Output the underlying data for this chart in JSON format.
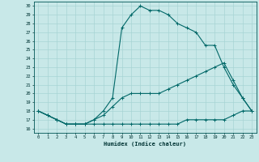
{
  "xlabel": "Humidex (Indice chaleur)",
  "bg_color": "#c8e8e8",
  "line_color": "#006868",
  "grid_color": "#a8d4d4",
  "xlim": [
    -0.5,
    23.5
  ],
  "ylim": [
    15.5,
    30.5
  ],
  "xticks": [
    0,
    1,
    2,
    3,
    4,
    5,
    6,
    7,
    8,
    9,
    10,
    11,
    12,
    13,
    14,
    15,
    16,
    17,
    18,
    19,
    20,
    21,
    22,
    23
  ],
  "yticks": [
    16,
    17,
    18,
    19,
    20,
    21,
    22,
    23,
    24,
    25,
    26,
    27,
    28,
    29,
    30
  ],
  "line1_x": [
    0,
    1,
    2,
    3,
    4,
    5,
    6,
    7,
    8,
    9,
    10,
    11,
    12,
    13,
    14,
    15,
    16,
    17,
    18,
    19,
    20,
    21,
    22,
    23
  ],
  "line1_y": [
    18,
    17.5,
    17,
    16.5,
    16.5,
    16.5,
    16.5,
    16.5,
    16.5,
    16.5,
    16.5,
    16.5,
    16.5,
    16.5,
    16.5,
    16.5,
    17,
    17,
    17,
    17,
    17,
    17.5,
    18,
    18
  ],
  "line2_x": [
    0,
    1,
    2,
    3,
    4,
    5,
    6,
    7,
    8,
    9,
    10,
    11,
    12,
    13,
    14,
    15,
    16,
    17,
    18,
    19,
    20,
    21,
    22,
    23
  ],
  "line2_y": [
    18,
    17.5,
    17,
    16.5,
    16.5,
    16.5,
    17,
    17.5,
    18.5,
    19.5,
    20,
    20,
    20,
    20,
    20.5,
    21,
    21.5,
    22,
    22.5,
    23,
    23.5,
    21.5,
    19.5,
    18
  ],
  "line3_x": [
    0,
    1,
    2,
    3,
    4,
    5,
    6,
    7,
    8,
    9,
    10,
    11,
    12,
    13,
    14,
    15,
    16,
    17,
    18,
    19,
    20,
    21,
    22,
    23
  ],
  "line3_y": [
    18,
    17.5,
    17,
    16.5,
    16.5,
    16.5,
    17,
    18,
    19.5,
    27.5,
    29,
    30,
    29.5,
    29.5,
    29,
    28,
    27.5,
    27,
    25.5,
    25.5,
    23,
    21,
    19.5,
    18
  ]
}
